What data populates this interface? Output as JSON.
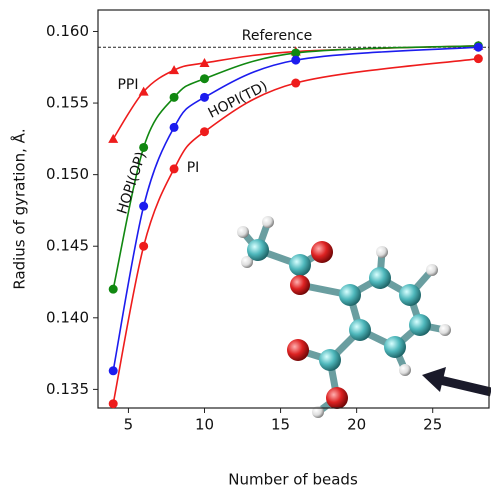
{
  "chart_data": {
    "type": "line",
    "xlabel": "Number of beads",
    "ylabel": "Radius of gyration, Å.",
    "xlim": [
      3,
      28.7
    ],
    "ylim": [
      0.1337,
      0.1615
    ],
    "xticks": [
      5,
      10,
      15,
      20,
      25
    ],
    "yticks": [
      0.135,
      {
        "value": 0.14,
        "label": "0.140"
      },
      0.145,
      {
        "value": 0.15,
        "label": "0.150"
      },
      0.155,
      {
        "value": 0.16,
        "label": "0.160"
      }
    ],
    "reference": {
      "label": "Reference",
      "value": 0.1589
    },
    "x": [
      4,
      6,
      8,
      10,
      16,
      28
    ],
    "series": [
      {
        "name": "PPI",
        "color": "#ee1c1c",
        "marker": "triangle",
        "values": [
          0.1525,
          0.1558,
          0.1573,
          0.1578,
          0.1586,
          0.159
        ]
      },
      {
        "name": "HOPI(OP)",
        "color": "#118811",
        "marker": "circle",
        "values": [
          0.142,
          0.1519,
          0.1554,
          0.1567,
          0.1585,
          0.159
        ]
      },
      {
        "name": "HOPI(TD)",
        "color": "#1c1cee",
        "marker": "circle",
        "values": [
          0.1363,
          0.1478,
          0.1533,
          0.1554,
          0.158,
          0.1589
        ]
      },
      {
        "name": "PI",
        "color": "#ee1c1c",
        "marker": "circle",
        "values": [
          0.134,
          0.145,
          0.1504,
          0.153,
          0.1564,
          0.1581
        ]
      }
    ]
  }
}
